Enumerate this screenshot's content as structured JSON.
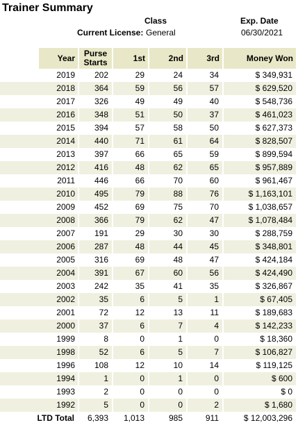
{
  "title": "Trainer Summary",
  "license": {
    "class_label": "Class",
    "current_label": "Current License:",
    "current_value": "General",
    "exp_label": "Exp. Date",
    "exp_value": "06/30/2021"
  },
  "table": {
    "headers": [
      "Year",
      "Purse Starts",
      "1st",
      "2nd",
      "3rd",
      "Money Won"
    ],
    "rows": [
      [
        "2019",
        "202",
        "29",
        "24",
        "34",
        "$ 349,931"
      ],
      [
        "2018",
        "364",
        "59",
        "56",
        "57",
        "$ 629,520"
      ],
      [
        "2017",
        "326",
        "49",
        "49",
        "40",
        "$ 548,736"
      ],
      [
        "2016",
        "348",
        "51",
        "50",
        "37",
        "$ 461,023"
      ],
      [
        "2015",
        "394",
        "57",
        "58",
        "50",
        "$ 627,373"
      ],
      [
        "2014",
        "440",
        "71",
        "61",
        "64",
        "$ 828,507"
      ],
      [
        "2013",
        "397",
        "66",
        "65",
        "59",
        "$ 899,594"
      ],
      [
        "2012",
        "416",
        "48",
        "62",
        "65",
        "$ 957,889"
      ],
      [
        "2011",
        "446",
        "66",
        "70",
        "60",
        "$ 961,467"
      ],
      [
        "2010",
        "495",
        "79",
        "88",
        "76",
        "$ 1,163,101"
      ],
      [
        "2009",
        "452",
        "69",
        "75",
        "70",
        "$ 1,038,657"
      ],
      [
        "2008",
        "366",
        "79",
        "62",
        "47",
        "$ 1,078,484"
      ],
      [
        "2007",
        "191",
        "29",
        "30",
        "30",
        "$ 288,759"
      ],
      [
        "2006",
        "287",
        "48",
        "44",
        "45",
        "$ 348,801"
      ],
      [
        "2005",
        "316",
        "69",
        "48",
        "47",
        "$ 424,184"
      ],
      [
        "2004",
        "391",
        "67",
        "60",
        "56",
        "$ 424,490"
      ],
      [
        "2003",
        "242",
        "35",
        "41",
        "35",
        "$ 326,867"
      ],
      [
        "2002",
        "35",
        "6",
        "5",
        "1",
        "$ 67,405"
      ],
      [
        "2001",
        "72",
        "12",
        "13",
        "11",
        "$ 189,683"
      ],
      [
        "2000",
        "37",
        "6",
        "7",
        "4",
        "$ 142,233"
      ],
      [
        "1999",
        "8",
        "0",
        "1",
        "0",
        "$ 18,360"
      ],
      [
        "1998",
        "52",
        "6",
        "5",
        "7",
        "$ 106,827"
      ],
      [
        "1996",
        "108",
        "12",
        "10",
        "14",
        "$ 119,125"
      ],
      [
        "1994",
        "1",
        "0",
        "1",
        "0",
        "$ 600"
      ],
      [
        "1993",
        "2",
        "0",
        "0",
        "0",
        "$ 0"
      ],
      [
        "1992",
        "5",
        "0",
        "0",
        "2",
        "$ 1,680"
      ]
    ],
    "total": [
      "LTD Total",
      "6,393",
      "1,013",
      "985",
      "911",
      "$ 12,003,296"
    ]
  }
}
